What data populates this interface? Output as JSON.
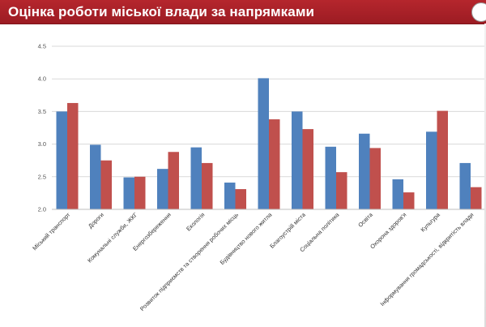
{
  "header": {
    "title": "Оцінка роботи міської влади за напрямками"
  },
  "colors": {
    "header_bg": "#a8222a",
    "series_1": "#4f81bd",
    "series_2": "#c0504d",
    "gridline": "#d9d9d9"
  },
  "chart_data": {
    "type": "bar",
    "title": "",
    "xlabel": "",
    "ylabel": "",
    "ylim": [
      2.0,
      4.5
    ],
    "yticks": [
      "2.0",
      "2.5",
      "3.0",
      "3.5",
      "4.0",
      "4.5"
    ],
    "grid": true,
    "legend": "none",
    "categories": [
      "Міський транспорт",
      "Дороги",
      "Комунальні служби, ЖКГ",
      "Енергозбереження",
      "Екологія",
      "Розвиток підприємств та створення робочих місць",
      "Будівництво нового житла",
      "Благоустрій міста",
      "Соціальна політика",
      "Освіта",
      "Охорона здоров'я",
      "Культура",
      "Інформування громадськості, відкритість влади"
    ],
    "series": [
      {
        "color": "#4f81bd",
        "values": [
          3.5,
          2.99,
          2.49,
          2.62,
          2.95,
          2.41,
          4.01,
          3.5,
          2.96,
          3.16,
          2.46,
          3.19,
          2.71
        ]
      },
      {
        "color": "#c0504d",
        "values": [
          3.63,
          2.75,
          2.5,
          2.88,
          2.71,
          2.31,
          3.38,
          3.23,
          2.57,
          2.94,
          2.26,
          3.51,
          2.34
        ]
      }
    ]
  }
}
